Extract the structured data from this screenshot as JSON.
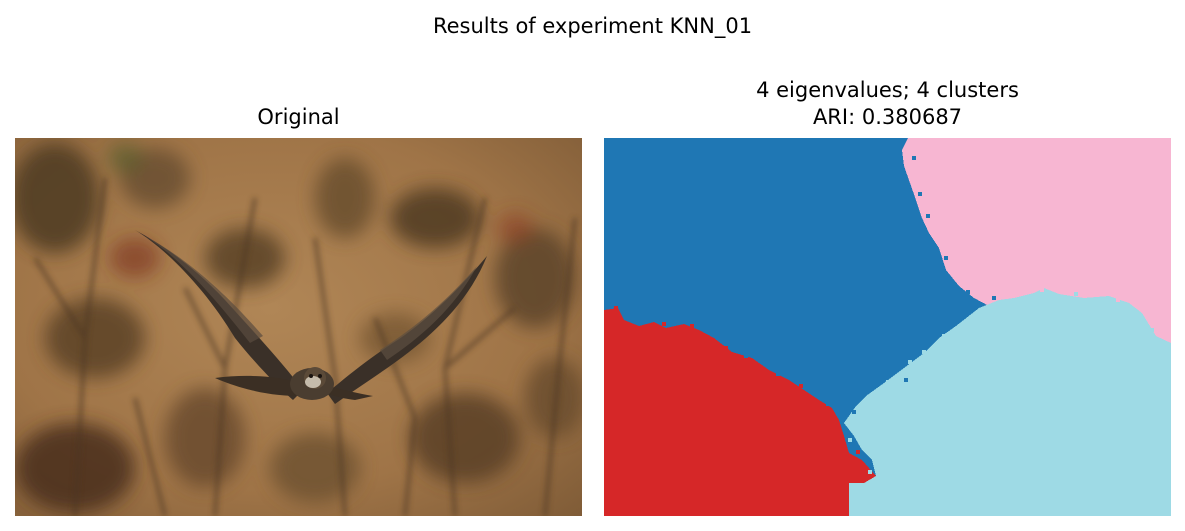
{
  "figure": {
    "suptitle": "Results of experiment KNN_01"
  },
  "panels": [
    {
      "title": "Original",
      "content": "photo of a hawk in flight against a blurred brown background of bare branches"
    },
    {
      "title_line1": "4 eigenvalues; 4 clusters",
      "title_line2": "ARI: 0.380687",
      "content": "4-cluster segmentation map",
      "cluster_colors": [
        "#1f77b4",
        "#f7b6d2",
        "#9edae5",
        "#d62728"
      ]
    }
  ]
}
